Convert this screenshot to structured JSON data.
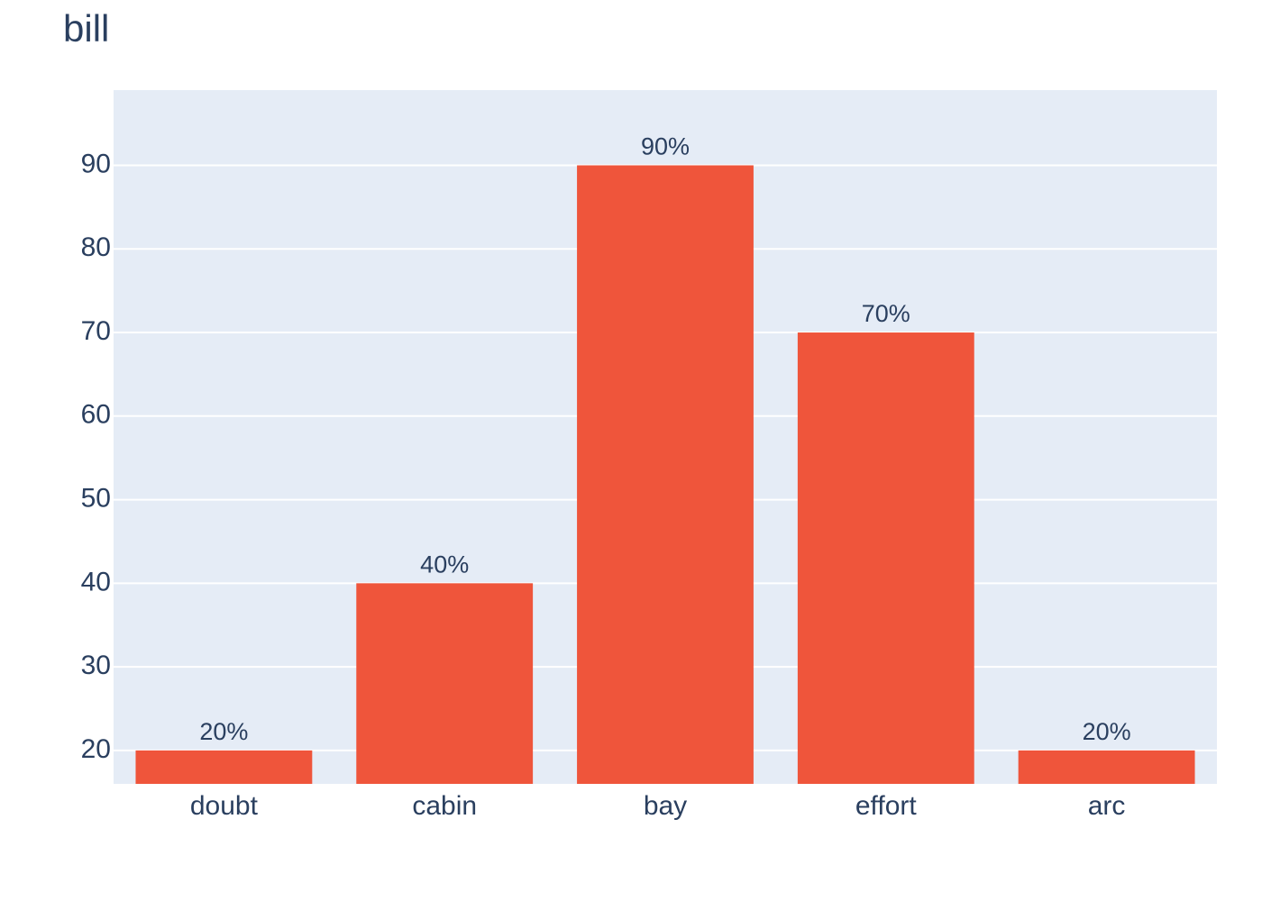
{
  "chart_data": {
    "type": "bar",
    "title": "bill",
    "categories": [
      "doubt",
      "cabin",
      "bay",
      "effort",
      "arc"
    ],
    "values": [
      20,
      40,
      90,
      70,
      20
    ],
    "value_labels": [
      "20%",
      "40%",
      "90%",
      "70%",
      "20%"
    ],
    "color": "#ef553b",
    "ylim": [
      16,
      99
    ],
    "yticks": [
      20,
      30,
      40,
      50,
      60,
      70,
      80,
      90
    ],
    "grid": true
  }
}
